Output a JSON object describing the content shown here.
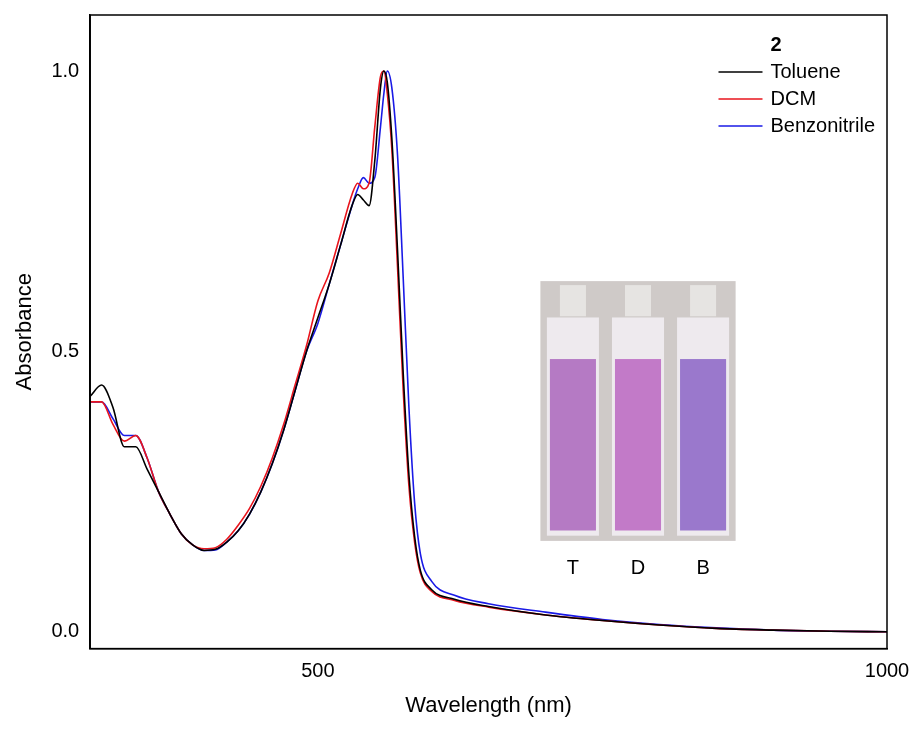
{
  "chart_data": {
    "type": "line",
    "title": "2",
    "x_label": "Wavelength (nm)",
    "y_label": "Absorbance",
    "x": [
      300,
      310,
      320,
      330,
      340,
      350,
      360,
      370,
      380,
      390,
      400,
      410,
      420,
      430,
      440,
      450,
      460,
      470,
      480,
      490,
      500,
      510,
      520,
      530,
      535,
      540,
      545,
      550,
      555,
      558,
      561,
      565,
      570,
      575,
      580,
      585,
      590,
      600,
      620,
      650,
      700,
      750,
      800,
      850,
      900,
      950,
      1000
    ],
    "series": [
      {
        "name": "Toluene",
        "color": "#000000",
        "values": [
          0.42,
          0.44,
          0.4,
          0.33,
          0.33,
          0.29,
          0.25,
          0.21,
          0.175,
          0.155,
          0.145,
          0.147,
          0.16,
          0.18,
          0.21,
          0.25,
          0.3,
          0.36,
          0.43,
          0.5,
          0.56,
          0.62,
          0.69,
          0.76,
          0.78,
          0.77,
          0.76,
          0.84,
          0.97,
          1.0,
          0.98,
          0.88,
          0.68,
          0.46,
          0.28,
          0.17,
          0.11,
          0.075,
          0.058,
          0.045,
          0.03,
          0.02,
          0.012,
          0.006,
          0.003,
          0.001,
          0.0
        ]
      },
      {
        "name": "DCM",
        "color": "#e8141c",
        "values": [
          0.41,
          0.41,
          0.37,
          0.34,
          0.35,
          0.31,
          0.25,
          0.21,
          0.175,
          0.155,
          0.148,
          0.15,
          0.165,
          0.19,
          0.22,
          0.26,
          0.31,
          0.37,
          0.44,
          0.51,
          0.59,
          0.64,
          0.71,
          0.78,
          0.8,
          0.79,
          0.8,
          0.9,
          0.99,
          1.0,
          0.96,
          0.86,
          0.65,
          0.43,
          0.26,
          0.16,
          0.105,
          0.072,
          0.056,
          0.044,
          0.03,
          0.02,
          0.012,
          0.006,
          0.003,
          0.001,
          0.0
        ]
      },
      {
        "name": "Benzonitrile",
        "color": "#1a1ae6",
        "values": [
          0.41,
          0.41,
          0.38,
          0.35,
          0.35,
          0.31,
          0.25,
          0.21,
          0.175,
          0.155,
          0.145,
          0.146,
          0.16,
          0.18,
          0.21,
          0.25,
          0.3,
          0.36,
          0.43,
          0.5,
          0.55,
          0.62,
          0.69,
          0.76,
          0.79,
          0.81,
          0.8,
          0.81,
          0.9,
          0.96,
          1.0,
          0.97,
          0.85,
          0.63,
          0.4,
          0.23,
          0.14,
          0.09,
          0.065,
          0.05,
          0.035,
          0.022,
          0.013,
          0.007,
          0.003,
          0.001,
          0.0
        ]
      }
    ],
    "xlim": [
      300,
      1000
    ],
    "xticks": [
      500,
      1000
    ],
    "ylim": [
      -0.03,
      1.1
    ],
    "yticks": [
      {
        "value": 0,
        "label": "0.0"
      },
      {
        "value": 0.5,
        "label": "0.5"
      },
      {
        "value": 1,
        "label": "1.0"
      }
    ],
    "grid": false,
    "legend": "upper right",
    "inset": {
      "labels": [
        "T",
        "D",
        "B"
      ]
    }
  }
}
